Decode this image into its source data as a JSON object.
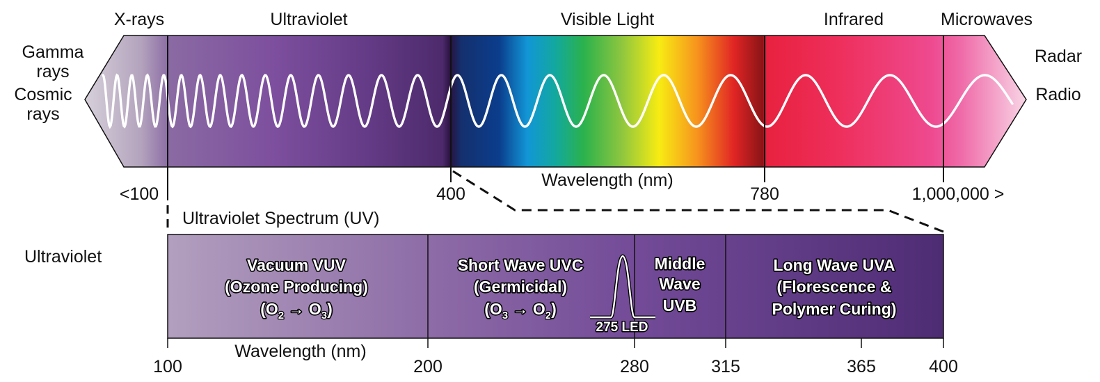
{
  "spectrum": {
    "regions": {
      "xrays": "X-rays",
      "ultraviolet": "Ultraviolet",
      "visible": "Visible Light",
      "infrared": "Infrared",
      "microwaves": "Microwaves"
    },
    "left_labels": {
      "gamma_1": "Gamma",
      "gamma_2": "rays",
      "cosmic_1": "Cosmic",
      "cosmic_2": "rays"
    },
    "right_labels": {
      "radar": "Radar",
      "radio": "Radio"
    },
    "axis_title": "Wavelength (nm)",
    "ticks": {
      "t100": "<100",
      "t400": "400",
      "t780": "780",
      "t1m": "1,000,000 >"
    }
  },
  "uv": {
    "title": "Ultraviolet Spectrum (UV)",
    "row_label": "Ultraviolet",
    "axis_title": "Wavelength (nm)",
    "bands": {
      "vuv": {
        "l1": "Vacuum VUV",
        "l2": "(Ozone Producing)",
        "l3": "(O2 → O3)"
      },
      "uvc": {
        "l1": "Short Wave UVC",
        "l2": "(Germicidal)",
        "l3": "(O3 → O2)"
      },
      "uvb": {
        "l1": "Middle",
        "l2": "Wave",
        "l3": "UVB"
      },
      "uva": {
        "l1": "Long Wave UVA",
        "l2": "(Florescence &",
        "l3": "Polymer Curing)"
      }
    },
    "led_label": "275 LED",
    "ticks": {
      "t100": "100",
      "t200": "200",
      "t280": "280",
      "t315": "315",
      "t365": "365",
      "t400": "400"
    }
  }
}
